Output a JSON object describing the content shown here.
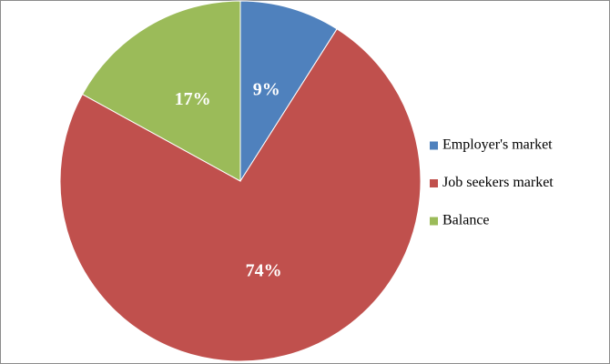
{
  "chart_data": {
    "type": "pie",
    "categories": [
      "Employer's market",
      "Job seekers market",
      "Balance"
    ],
    "values": [
      9,
      74,
      17
    ],
    "value_labels": [
      "9%",
      "74%",
      "17%"
    ],
    "colors": [
      "#4f81bd",
      "#c0504d",
      "#9bbb59"
    ]
  }
}
